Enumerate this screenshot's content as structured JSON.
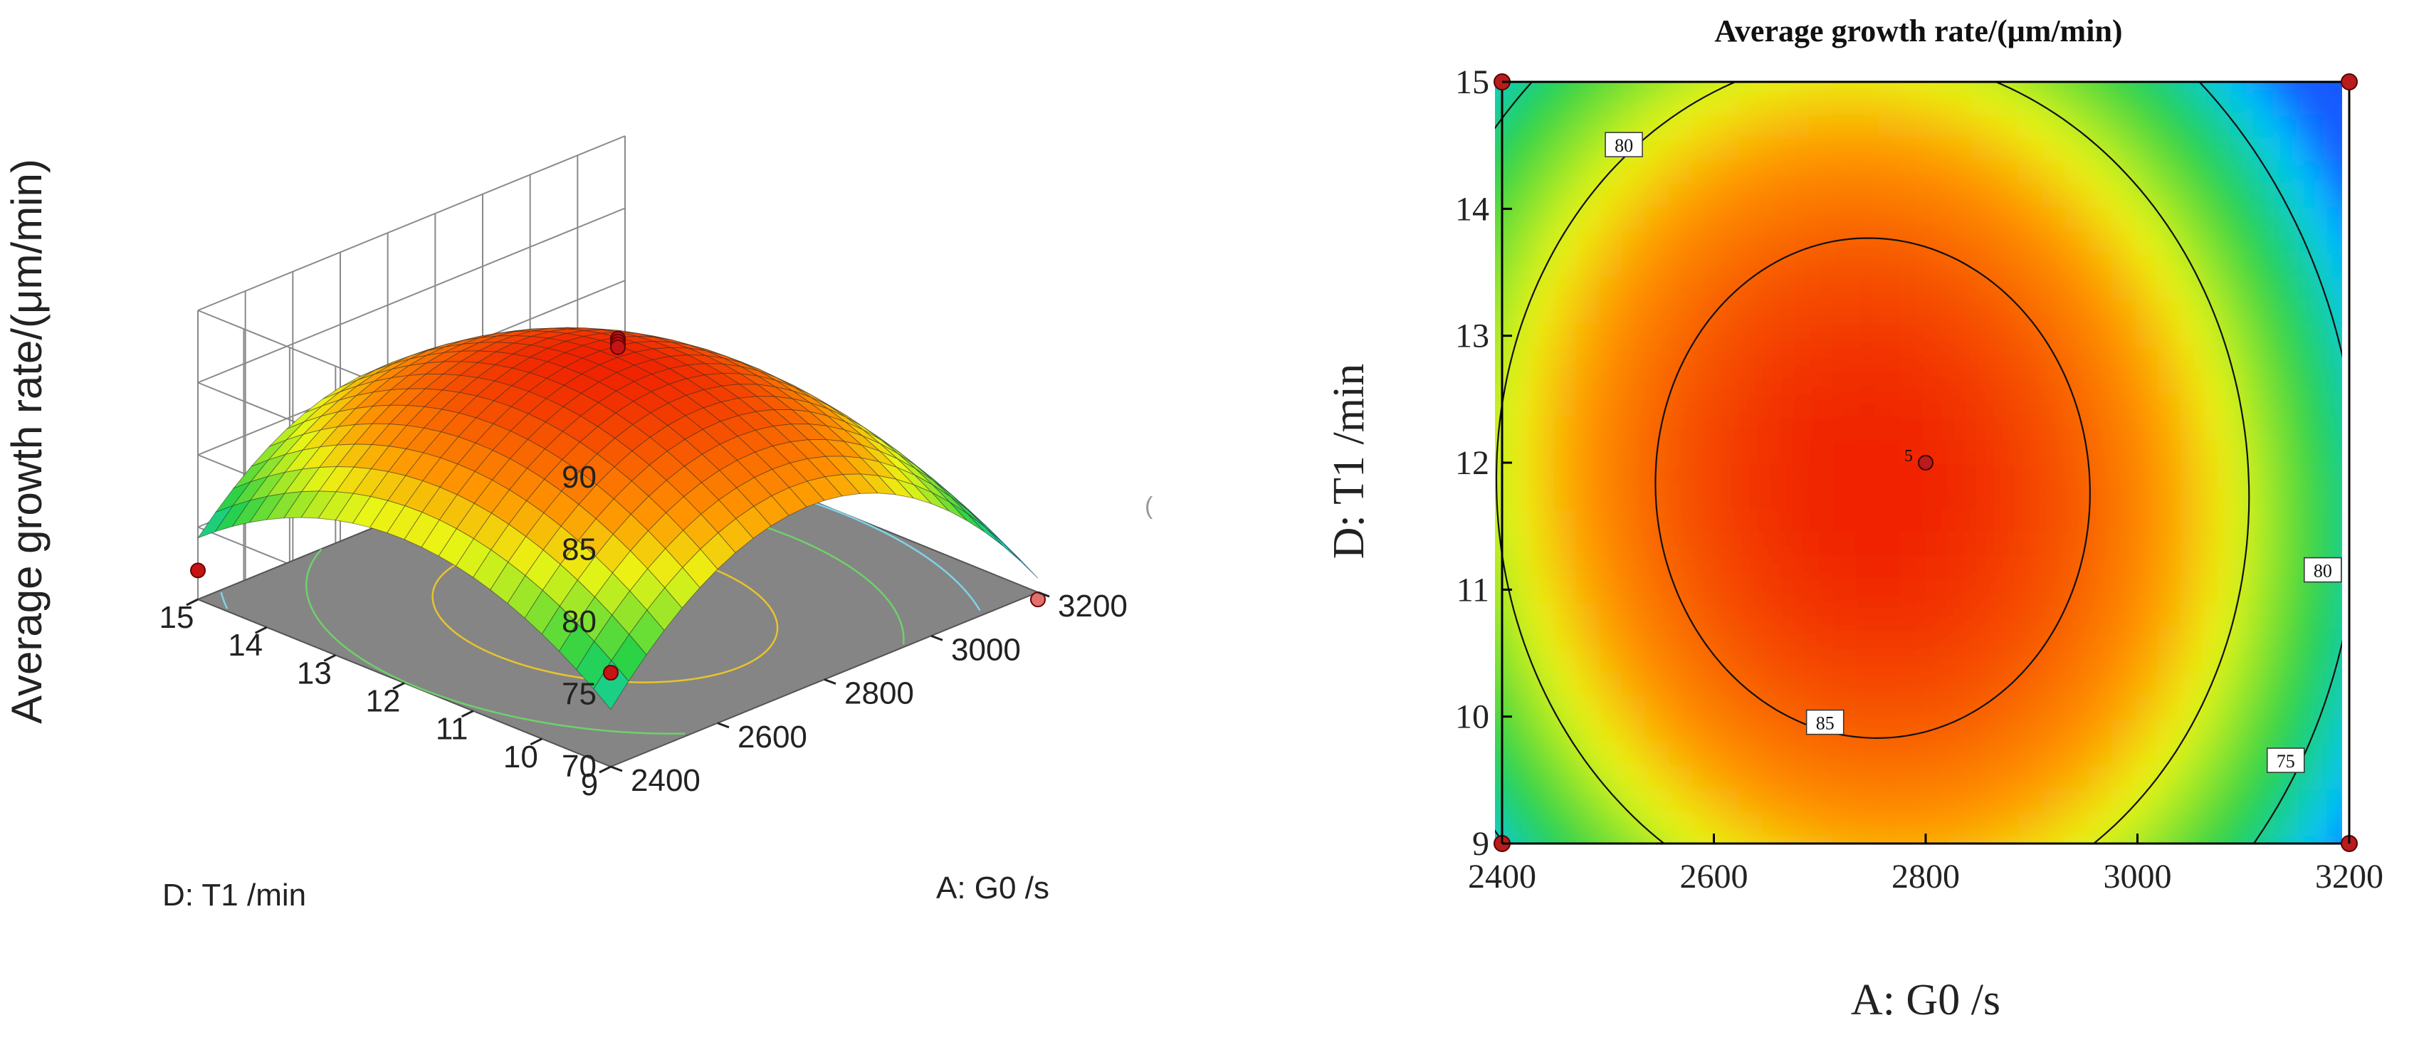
{
  "chart_data": [
    {
      "type": "surface",
      "ylabel": "Average growth rate/(μm/min)",
      "xlabel": "A: G0 /s",
      "dlabel": "D: T1 /min",
      "x_ticks": [
        "2400",
        "2600",
        "2800",
        "3000",
        "3200"
      ],
      "d_ticks": [
        "9",
        "10",
        "11",
        "12",
        "13",
        "14",
        "15"
      ],
      "z_ticks": [
        "70",
        "75",
        "80",
        "85",
        "90"
      ],
      "x_range": [
        2400,
        3200
      ],
      "d_range": [
        9,
        15
      ],
      "z_range": [
        70,
        90
      ],
      "surface_peak": {
        "G0": 2750,
        "T1": 11.8,
        "value": 87.5
      },
      "design_points": [
        {
          "G0": 2800,
          "T1": 12,
          "value": 87.8
        },
        {
          "G0": 2800,
          "T1": 12,
          "value": 87.6
        },
        {
          "G0": 2800,
          "T1": 12,
          "value": 87.4
        },
        {
          "G0": 2800,
          "T1": 12,
          "value": 87.2
        },
        {
          "G0": 2400,
          "T1": 15,
          "value": 72.0
        },
        {
          "G0": 2400,
          "T1": 9,
          "value": 76.5
        },
        {
          "G0": 3200,
          "T1": 9,
          "value": 69.5
        }
      ],
      "floor_contours": [
        85,
        80,
        75
      ],
      "stray_mark": "("
    },
    {
      "type": "contour",
      "title": "Average growth rate/(μm/min)",
      "xlabel": "A: G0 /s",
      "ylabel": "D: T1 /min",
      "x_ticks": [
        "2400",
        "2600",
        "2800",
        "3000",
        "3200"
      ],
      "y_ticks": [
        "9",
        "10",
        "11",
        "12",
        "13",
        "14",
        "15"
      ],
      "x_range": [
        2400,
        3200
      ],
      "y_range": [
        9,
        15
      ],
      "contour_labels": [
        "80",
        "80",
        "85",
        "75"
      ],
      "center_point": {
        "G0": 2800,
        "T1": 12,
        "label": "5"
      },
      "corner_points": [
        {
          "G0": 2400,
          "T1": 15
        },
        {
          "G0": 3200,
          "T1": 15
        },
        {
          "G0": 2400,
          "T1": 9
        },
        {
          "G0": 3200,
          "T1": 9
        }
      ]
    }
  ]
}
